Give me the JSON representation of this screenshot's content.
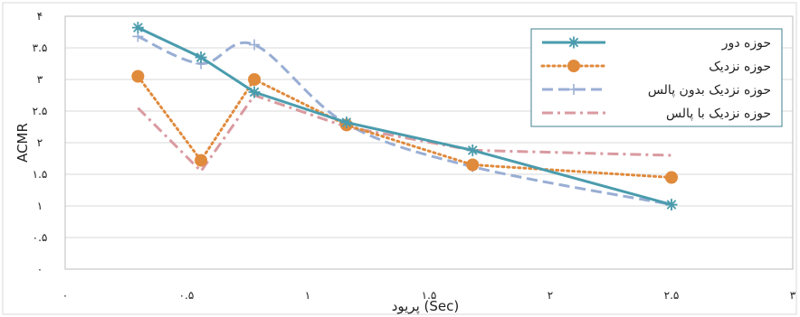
{
  "chart_data": {
    "type": "line",
    "xlabel": "پریود (Sec)",
    "ylabel": "ACMR",
    "xlim": [
      0,
      3
    ],
    "ylim": [
      0,
      4
    ],
    "x_ticks": [
      {
        "value": 0,
        "label": "۰"
      },
      {
        "value": 0.5,
        "label": "۰.۵"
      },
      {
        "value": 1,
        "label": "۱"
      },
      {
        "value": 1.5,
        "label": "۱.۵"
      },
      {
        "value": 2,
        "label": "۲"
      },
      {
        "value": 2.5,
        "label": "۲.۵"
      },
      {
        "value": 3,
        "label": "۳"
      }
    ],
    "y_ticks": [
      {
        "value": 0,
        "label": "۰"
      },
      {
        "value": 0.5,
        "label": "۰.۵"
      },
      {
        "value": 1,
        "label": "۱"
      },
      {
        "value": 1.5,
        "label": "۱.۵"
      },
      {
        "value": 2,
        "label": "۲"
      },
      {
        "value": 2.5,
        "label": "۲.۵"
      },
      {
        "value": 3,
        "label": "۳"
      },
      {
        "value": 3.5,
        "label": "۳.۵"
      },
      {
        "value": 4,
        "label": "۴"
      }
    ],
    "grid": "horizontal",
    "legend_position": "top-right",
    "series": [
      {
        "name": "حوزه دور",
        "color": "#4a9cad",
        "style": "solid",
        "smooth": false,
        "marker": "asterisk",
        "points": [
          [
            0.3,
            3.82
          ],
          [
            0.56,
            3.35
          ],
          [
            0.78,
            2.8
          ],
          [
            1.16,
            2.32
          ],
          [
            1.68,
            1.88
          ],
          [
            2.5,
            1.02
          ]
        ]
      },
      {
        "name": "حوزه نزدیک",
        "color": "#e08a3c",
        "style": "dotted",
        "smooth": false,
        "marker": "circle",
        "points": [
          [
            0.3,
            3.05
          ],
          [
            0.56,
            1.72
          ],
          [
            0.78,
            3.0
          ],
          [
            1.16,
            2.28
          ],
          [
            1.68,
            1.65
          ],
          [
            2.5,
            1.45
          ]
        ]
      },
      {
        "name": "حوزه نزدیک بدون پالس",
        "color": "#99aed4",
        "style": "dashed",
        "smooth": true,
        "marker": "plus",
        "points": [
          [
            0.3,
            3.68
          ],
          [
            0.56,
            3.25
          ],
          [
            0.78,
            3.55
          ],
          [
            1.16,
            2.3
          ],
          [
            1.68,
            1.62
          ],
          [
            2.5,
            1.02
          ]
        ]
      },
      {
        "name": "حوزه نزدیک با پالس",
        "color": "#d99aa0",
        "style": "dashdot",
        "smooth": false,
        "marker": "none",
        "points": [
          [
            0.3,
            2.55
          ],
          [
            0.56,
            1.55
          ],
          [
            0.78,
            2.75
          ],
          [
            1.16,
            2.25
          ],
          [
            1.68,
            1.88
          ],
          [
            2.5,
            1.8
          ]
        ]
      }
    ]
  }
}
